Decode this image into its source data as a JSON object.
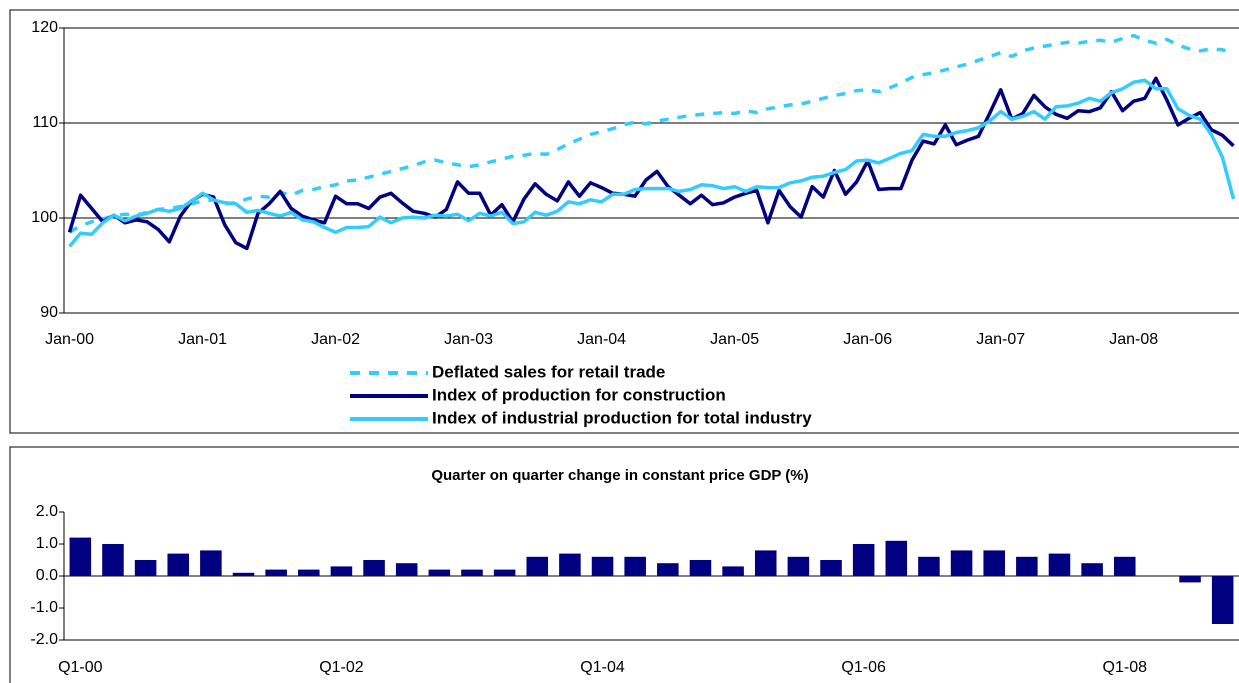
{
  "chart_data": [
    {
      "type": "line",
      "legend": "bottom",
      "grid": true,
      "categories": [
        "Jan-00",
        null,
        null,
        null,
        null,
        null,
        null,
        null,
        null,
        null,
        null,
        null,
        "Jan-01",
        null,
        null,
        null,
        null,
        null,
        null,
        null,
        null,
        null,
        null,
        null,
        "Jan-02",
        null,
        null,
        null,
        null,
        null,
        null,
        null,
        null,
        null,
        null,
        null,
        "Jan-03",
        null,
        null,
        null,
        null,
        null,
        null,
        null,
        null,
        null,
        null,
        null,
        "Jan-04",
        null,
        null,
        null,
        null,
        null,
        null,
        null,
        null,
        null,
        null,
        null,
        "Jan-05",
        null,
        null,
        null,
        null,
        null,
        null,
        null,
        null,
        null,
        null,
        null,
        "Jan-06",
        null,
        null,
        null,
        null,
        null,
        null,
        null,
        null,
        null,
        null,
        null,
        "Jan-07",
        null,
        null,
        null,
        null,
        null,
        null,
        null,
        null,
        null,
        null,
        null,
        "Jan-08",
        null,
        null,
        null,
        null,
        null,
        null,
        null,
        null,
        null
      ],
      "ylim": [
        90,
        120
      ],
      "yticks": [
        90,
        100,
        110,
        120
      ],
      "series": [
        {
          "name": "Deflated sales for retail trade",
          "color": "#33ccff",
          "style": "dashed",
          "values": [
            98.5,
            99.2,
            99.6,
            99.9,
            100.2,
            100.4,
            100.3,
            100.6,
            100.9,
            101.0,
            101.2,
            101.5,
            101.8,
            101.9,
            101.5,
            101.6,
            102.0,
            102.3,
            102.2,
            102.7,
            102.4,
            102.9,
            103.0,
            103.3,
            103.5,
            103.9,
            104.0,
            104.3,
            104.6,
            104.9,
            105.2,
            105.5,
            105.9,
            106.1,
            105.8,
            105.6,
            105.4,
            105.6,
            105.9,
            106.2,
            106.5,
            106.6,
            106.8,
            106.7,
            107.2,
            107.8,
            108.3,
            108.8,
            109.1,
            109.4,
            109.8,
            110.1,
            109.9,
            110.2,
            110.4,
            110.6,
            110.8,
            110.9,
            111.0,
            111.1,
            111.0,
            111.3,
            111.1,
            111.5,
            111.7,
            111.9,
            112.0,
            112.3,
            112.6,
            112.9,
            113.1,
            113.4,
            113.5,
            113.3,
            113.7,
            114.2,
            114.8,
            115.1,
            115.3,
            115.6,
            115.9,
            116.2,
            116.6,
            117.0,
            117.4,
            117.0,
            117.6,
            117.9,
            118.1,
            118.3,
            118.5,
            118.4,
            118.6,
            118.7,
            118.5,
            118.9,
            119.2,
            118.7,
            118.4,
            118.8,
            118.2,
            117.8,
            117.6,
            117.8,
            117.7,
            117.4
          ]
        },
        {
          "name": "Index of production for construction",
          "color": "#000080",
          "style": "solid",
          "values": [
            98.5,
            102.4,
            101.0,
            99.6,
            100.3,
            99.5,
            99.8,
            99.6,
            98.8,
            97.5,
            100.2,
            101.8,
            102.5,
            102.2,
            99.3,
            97.4,
            96.8,
            100.5,
            101.5,
            102.8,
            101.0,
            100.2,
            99.8,
            99.5,
            102.3,
            101.5,
            101.5,
            101.0,
            102.2,
            102.6,
            101.6,
            100.7,
            100.5,
            100.1,
            100.9,
            103.8,
            102.6,
            102.6,
            100.3,
            101.4,
            99.6,
            102.0,
            103.6,
            102.5,
            101.8,
            103.8,
            102.3,
            103.7,
            103.2,
            102.6,
            102.5,
            102.3,
            104.0,
            104.9,
            103.3,
            102.4,
            101.5,
            102.4,
            101.4,
            101.6,
            102.2,
            102.6,
            102.9,
            99.5,
            102.9,
            101.2,
            100.1,
            103.3,
            102.2,
            105.0,
            102.5,
            103.8,
            106.0,
            103.0,
            103.1,
            103.1,
            106.1,
            108.1,
            107.8,
            109.8,
            107.7,
            108.2,
            108.6,
            111.0,
            113.5,
            110.4,
            111.0,
            112.9,
            111.7,
            110.9,
            110.5,
            111.3,
            111.2,
            111.6,
            113.3,
            111.3,
            112.3,
            112.6,
            114.7,
            112.4,
            109.8,
            110.5,
            111.1,
            109.3,
            108.7,
            107.6
          ]
        },
        {
          "name": "Index of industrial production for total industry",
          "color": "#33ccff",
          "style": "solid",
          "values": [
            97.0,
            98.4,
            98.3,
            99.5,
            100.3,
            99.7,
            100.2,
            100.5,
            100.9,
            100.7,
            101.0,
            101.8,
            102.6,
            101.9,
            101.6,
            101.5,
            100.6,
            100.8,
            100.5,
            100.2,
            100.6,
            99.8,
            99.6,
            99.0,
            98.5,
            99.0,
            99.0,
            99.1,
            100.1,
            99.5,
            100.0,
            100.1,
            100.0,
            100.3,
            100.2,
            100.4,
            99.7,
            100.5,
            100.2,
            100.6,
            99.4,
            99.6,
            100.6,
            100.3,
            100.7,
            101.7,
            101.5,
            101.9,
            101.7,
            102.5,
            102.5,
            103.0,
            103.1,
            103.1,
            103.1,
            102.8,
            103.0,
            103.5,
            103.4,
            103.1,
            103.3,
            102.8,
            103.3,
            103.2,
            103.2,
            103.7,
            103.9,
            104.3,
            104.4,
            104.8,
            105.1,
            106.0,
            106.1,
            105.8,
            106.3,
            106.8,
            107.1,
            108.8,
            108.6,
            108.6,
            109.0,
            109.2,
            109.5,
            110.2,
            111.2,
            110.4,
            110.7,
            111.2,
            110.4,
            111.7,
            111.8,
            112.1,
            112.6,
            112.3,
            113.2,
            113.6,
            114.3,
            114.5,
            113.6,
            113.6,
            111.5,
            110.8,
            110.4,
            108.8,
            106.4,
            102.0
          ]
        }
      ]
    },
    {
      "type": "bar",
      "title": "Quarter on quarter change in constant price GDP (%)",
      "grid": false,
      "color": "#000080",
      "categories": [
        "Q1-00",
        null,
        null,
        null,
        null,
        null,
        null,
        null,
        "Q1-02",
        null,
        null,
        null,
        null,
        null,
        null,
        null,
        "Q1-04",
        null,
        null,
        null,
        null,
        null,
        null,
        null,
        "Q1-06",
        null,
        null,
        null,
        null,
        null,
        null,
        null,
        "Q1-08",
        null,
        null,
        null
      ],
      "values": [
        1.2,
        1.0,
        0.5,
        0.7,
        0.8,
        0.1,
        0.2,
        0.2,
        0.3,
        0.5,
        0.4,
        0.2,
        0.2,
        0.2,
        0.6,
        0.7,
        0.6,
        0.6,
        0.4,
        0.5,
        0.3,
        0.8,
        0.6,
        0.5,
        1.0,
        1.1,
        0.6,
        0.8,
        0.8,
        0.6,
        0.7,
        0.4,
        0.6,
        0.0,
        -0.2,
        -1.5
      ],
      "ylim": [
        -2,
        2
      ],
      "yticks": [
        {
          "value": -2,
          "label": "-2.0"
        },
        {
          "value": -1,
          "label": "-1.0"
        },
        {
          "value": 0,
          "label": "0.0"
        },
        {
          "value": 1,
          "label": "1.0"
        },
        {
          "value": 2,
          "label": "2.0"
        }
      ]
    }
  ]
}
